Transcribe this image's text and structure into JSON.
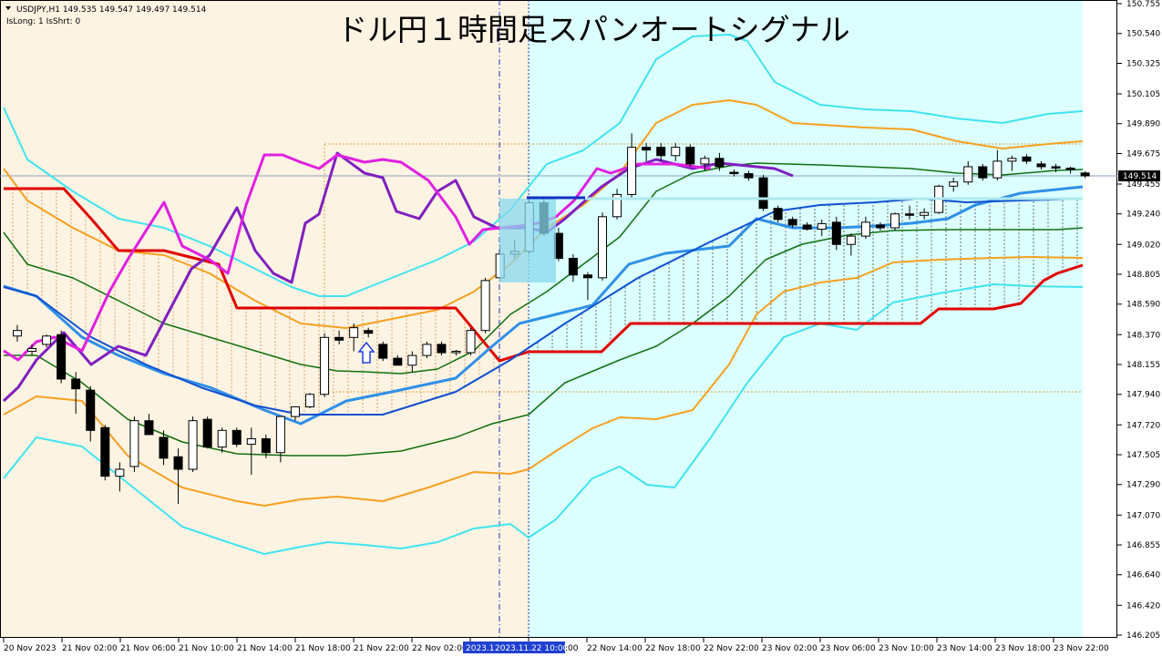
{
  "header": {
    "symbol_line": "USDJPY,H1  149.535 149.547 149.497 149.514",
    "status_line": "IsLong: 1 IsShrt: 0"
  },
  "title": "ドル円１時間足スパンオートシグナル",
  "current_price_label": "149.514",
  "date_tag_left": "2023.1",
  "date_tag_right": "2023.11.22 10:00",
  "colors": {
    "bg_left": "#fdf3e2",
    "bg_right": "#dcffff",
    "bull_candle": "#ffffff",
    "bear_candle": "#000000",
    "upper_band_2": "#40e4f0",
    "upper_band_1": "#f5a020",
    "mid_band": "#107010",
    "span_red": "#e00000",
    "span_blue": "#1050d0",
    "ma_blue": "#3090e8",
    "line_purple": "#8020c0",
    "line_magenta": "#e020e0",
    "price_line": "#8aa0c0",
    "selection_box": "#88d8ee",
    "signal_arrow": "#2040e0",
    "date_tag_bg": "#2040d0"
  },
  "chart_data": {
    "type": "candlestick",
    "symbol": "USDJPY",
    "timeframe": "H1",
    "last_bar": {
      "open": 149.535,
      "high": 149.547,
      "low": 149.497,
      "close": 149.514
    },
    "y_axis": {
      "range": [
        146.25,
        150.755
      ],
      "ticks": [
        "150.755",
        "150.540",
        "150.325",
        "150.105",
        "149.890",
        "149.675",
        "149.455",
        "149.240",
        "149.020",
        "148.805",
        "148.590",
        "148.370",
        "148.155",
        "147.940",
        "147.720",
        "147.505",
        "147.290",
        "147.070",
        "146.855",
        "146.640",
        "146.420",
        "146.205"
      ]
    },
    "x_axis": {
      "ticks": [
        "20 Nov 2023",
        "21 Nov 02:00",
        "21 Nov 06:00",
        "21 Nov 10:00",
        "21 Nov 14:00",
        "21 Nov 18:00",
        "21 Nov 22:00",
        "22 Nov 02:00",
        "22 Nov 06:00",
        "22 Nov 10:00",
        "22 Nov 14:00",
        "22 Nov 18:00",
        "22 Nov 22:00",
        "23 Nov 02:00",
        "23 Nov 06:00",
        "23 Nov 10:00",
        "23 Nov 14:00",
        "23 Nov 18:00",
        "23 Nov 22:00"
      ]
    },
    "candles": [
      {
        "o": 148.36,
        "h": 148.44,
        "l": 148.32,
        "c": 148.4
      },
      {
        "o": 148.25,
        "h": 148.3,
        "l": 148.22,
        "c": 148.27
      },
      {
        "o": 148.3,
        "h": 148.37,
        "l": 148.28,
        "c": 148.36
      },
      {
        "o": 148.37,
        "h": 148.4,
        "l": 148.02,
        "c": 148.05
      },
      {
        "o": 148.05,
        "h": 148.1,
        "l": 147.8,
        "c": 147.98
      },
      {
        "o": 147.97,
        "h": 148.0,
        "l": 147.6,
        "c": 147.68
      },
      {
        "o": 147.7,
        "h": 147.72,
        "l": 147.32,
        "c": 147.35
      },
      {
        "o": 147.35,
        "h": 147.45,
        "l": 147.24,
        "c": 147.4
      },
      {
        "o": 147.42,
        "h": 147.78,
        "l": 147.38,
        "c": 147.75
      },
      {
        "o": 147.75,
        "h": 147.8,
        "l": 147.65,
        "c": 147.65
      },
      {
        "o": 147.63,
        "h": 147.68,
        "l": 147.43,
        "c": 147.48
      },
      {
        "o": 147.49,
        "h": 147.55,
        "l": 147.15,
        "c": 147.4
      },
      {
        "o": 147.4,
        "h": 147.78,
        "l": 147.38,
        "c": 147.75
      },
      {
        "o": 147.76,
        "h": 147.78,
        "l": 147.55,
        "c": 147.56
      },
      {
        "o": 147.56,
        "h": 147.7,
        "l": 147.52,
        "c": 147.68
      },
      {
        "o": 147.68,
        "h": 147.7,
        "l": 147.56,
        "c": 147.58
      },
      {
        "o": 147.58,
        "h": 147.7,
        "l": 147.36,
        "c": 147.62
      },
      {
        "o": 147.62,
        "h": 147.65,
        "l": 147.48,
        "c": 147.52
      },
      {
        "o": 147.52,
        "h": 147.75,
        "l": 147.45,
        "c": 147.78
      },
      {
        "o": 147.78,
        "h": 147.85,
        "l": 147.75,
        "c": 147.85
      },
      {
        "o": 147.85,
        "h": 147.95,
        "l": 147.84,
        "c": 147.94
      },
      {
        "o": 147.94,
        "h": 148.38,
        "l": 147.92,
        "c": 148.35
      },
      {
        "o": 148.35,
        "h": 148.4,
        "l": 148.3,
        "c": 148.33
      },
      {
        "o": 148.35,
        "h": 148.45,
        "l": 148.25,
        "c": 148.42
      },
      {
        "o": 148.4,
        "h": 148.42,
        "l": 148.35,
        "c": 148.38
      },
      {
        "o": 148.3,
        "h": 148.32,
        "l": 148.18,
        "c": 148.2
      },
      {
        "o": 148.2,
        "h": 148.22,
        "l": 148.15,
        "c": 148.15
      },
      {
        "o": 148.15,
        "h": 148.25,
        "l": 148.1,
        "c": 148.22
      },
      {
        "o": 148.22,
        "h": 148.32,
        "l": 148.2,
        "c": 148.3
      },
      {
        "o": 148.3,
        "h": 148.32,
        "l": 148.22,
        "c": 148.24
      },
      {
        "o": 148.24,
        "h": 148.26,
        "l": 148.22,
        "c": 148.25
      },
      {
        "o": 148.24,
        "h": 148.42,
        "l": 148.22,
        "c": 148.4
      },
      {
        "o": 148.4,
        "h": 148.78,
        "l": 148.38,
        "c": 148.76
      },
      {
        "o": 148.78,
        "h": 149.02,
        "l": 148.76,
        "c": 148.95
      },
      {
        "o": 148.95,
        "h": 149.05,
        "l": 148.92,
        "c": 148.97
      },
      {
        "o": 148.97,
        "h": 149.35,
        "l": 148.95,
        "c": 149.32
      },
      {
        "o": 149.32,
        "h": 149.35,
        "l": 149.08,
        "c": 149.1
      },
      {
        "o": 149.1,
        "h": 149.14,
        "l": 148.9,
        "c": 148.92
      },
      {
        "o": 148.92,
        "h": 148.95,
        "l": 148.75,
        "c": 148.8
      },
      {
        "o": 148.8,
        "h": 148.82,
        "l": 148.62,
        "c": 148.78
      },
      {
        "o": 148.78,
        "h": 149.25,
        "l": 148.76,
        "c": 149.22
      },
      {
        "o": 149.22,
        "h": 149.42,
        "l": 149.2,
        "c": 149.38
      },
      {
        "o": 149.38,
        "h": 149.82,
        "l": 149.36,
        "c": 149.72
      },
      {
        "o": 149.72,
        "h": 149.75,
        "l": 149.62,
        "c": 149.7
      },
      {
        "o": 149.72,
        "h": 149.75,
        "l": 149.62,
        "c": 149.66
      },
      {
        "o": 149.66,
        "h": 149.75,
        "l": 149.62,
        "c": 149.72
      },
      {
        "o": 149.72,
        "h": 149.74,
        "l": 149.58,
        "c": 149.6
      },
      {
        "o": 149.6,
        "h": 149.66,
        "l": 149.55,
        "c": 149.64
      },
      {
        "o": 149.64,
        "h": 149.68,
        "l": 149.55,
        "c": 149.58
      },
      {
        "o": 149.54,
        "h": 149.56,
        "l": 149.51,
        "c": 149.53
      },
      {
        "o": 149.53,
        "h": 149.55,
        "l": 149.48,
        "c": 149.5
      },
      {
        "o": 149.5,
        "h": 149.52,
        "l": 149.26,
        "c": 149.28
      },
      {
        "o": 149.28,
        "h": 149.3,
        "l": 149.18,
        "c": 149.2
      },
      {
        "o": 149.2,
        "h": 149.22,
        "l": 149.14,
        "c": 149.16
      },
      {
        "o": 149.16,
        "h": 149.18,
        "l": 149.12,
        "c": 149.13
      },
      {
        "o": 149.13,
        "h": 149.2,
        "l": 149.08,
        "c": 149.17
      },
      {
        "o": 149.18,
        "h": 149.22,
        "l": 148.98,
        "c": 149.02
      },
      {
        "o": 149.02,
        "h": 149.1,
        "l": 148.94,
        "c": 149.08
      },
      {
        "o": 149.08,
        "h": 149.22,
        "l": 149.06,
        "c": 149.18
      },
      {
        "o": 149.16,
        "h": 149.18,
        "l": 149.12,
        "c": 149.14
      },
      {
        "o": 149.14,
        "h": 149.25,
        "l": 149.12,
        "c": 149.24
      },
      {
        "o": 149.24,
        "h": 149.3,
        "l": 149.2,
        "c": 149.23
      },
      {
        "o": 149.23,
        "h": 149.28,
        "l": 149.2,
        "c": 149.25
      },
      {
        "o": 149.25,
        "h": 149.45,
        "l": 149.24,
        "c": 149.44
      },
      {
        "o": 149.44,
        "h": 149.5,
        "l": 149.4,
        "c": 149.47
      },
      {
        "o": 149.47,
        "h": 149.62,
        "l": 149.45,
        "c": 149.58
      },
      {
        "o": 149.58,
        "h": 149.6,
        "l": 149.48,
        "c": 149.5
      },
      {
        "o": 149.5,
        "h": 149.7,
        "l": 149.48,
        "c": 149.62
      },
      {
        "o": 149.62,
        "h": 149.66,
        "l": 149.55,
        "c": 149.64
      },
      {
        "o": 149.65,
        "h": 149.67,
        "l": 149.6,
        "c": 149.62
      },
      {
        "o": 149.6,
        "h": 149.62,
        "l": 149.56,
        "c": 149.58
      },
      {
        "o": 149.58,
        "h": 149.6,
        "l": 149.54,
        "c": 149.57
      },
      {
        "o": 149.57,
        "h": 149.58,
        "l": 149.53,
        "c": 149.56
      },
      {
        "o": 149.535,
        "h": 149.547,
        "l": 149.497,
        "c": 149.514
      }
    ]
  }
}
